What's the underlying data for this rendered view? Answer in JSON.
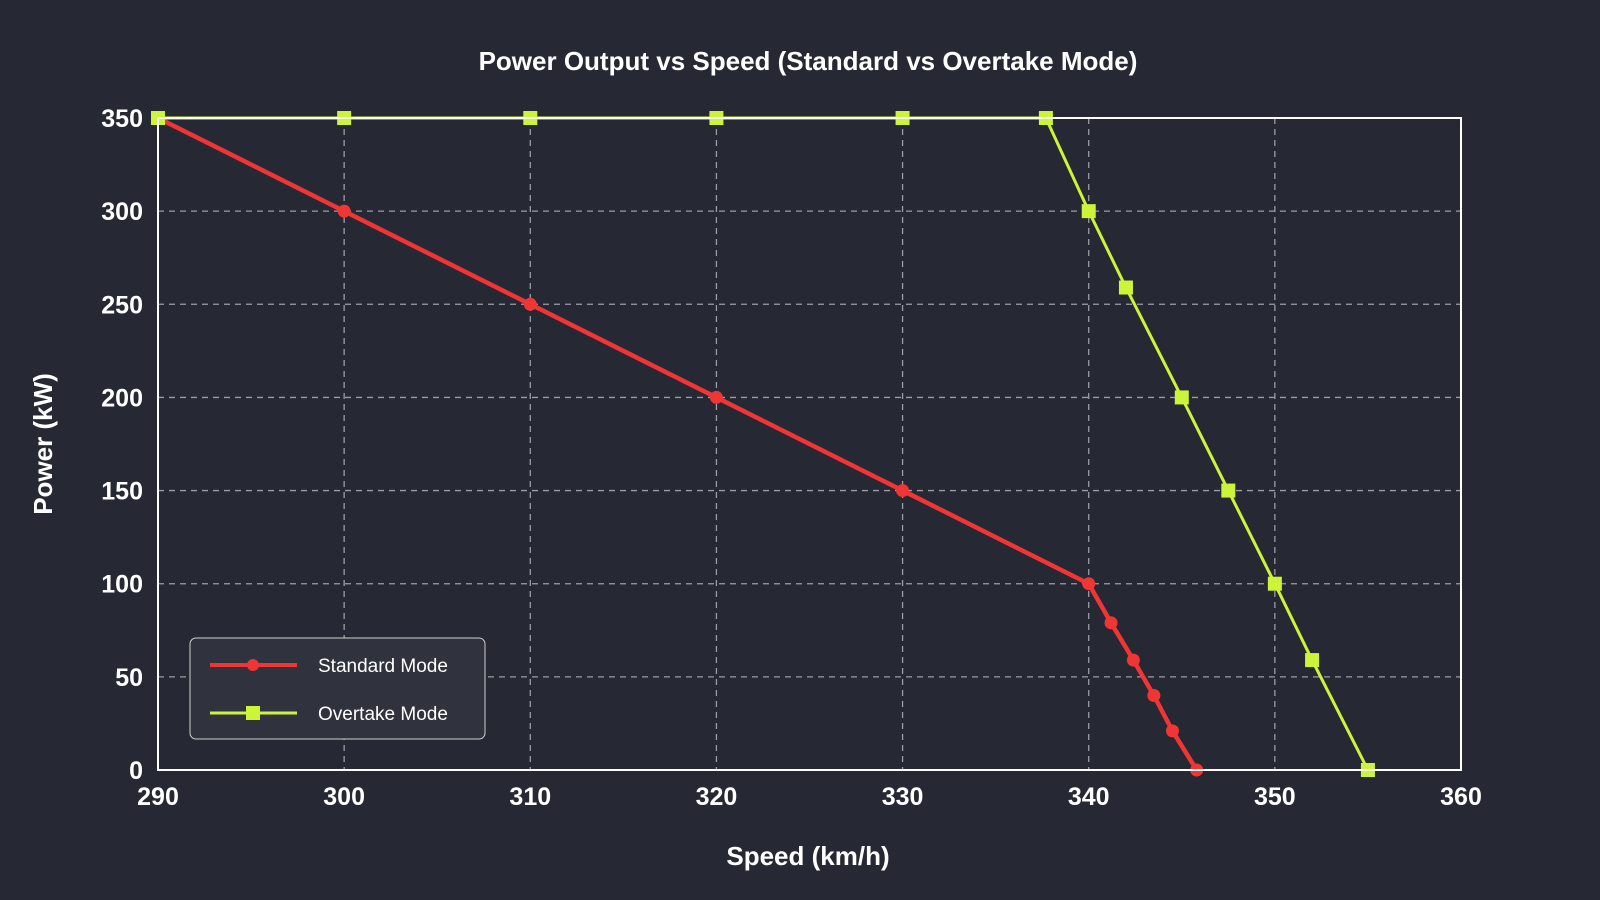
{
  "chart_data": {
    "type": "line",
    "title": "Power Output vs Speed (Standard vs Overtake Mode)",
    "xlabel": "Speed (km/h)",
    "ylabel": "Power (kW)",
    "xlim": [
      290,
      360
    ],
    "ylim": [
      0,
      350
    ],
    "xticks": [
      290,
      300,
      310,
      320,
      330,
      340,
      350,
      360
    ],
    "yticks": [
      0,
      50,
      100,
      150,
      200,
      250,
      300,
      350
    ],
    "grid": true,
    "legend_position": "bottom-left",
    "series": [
      {
        "name": "Standard Mode",
        "color": "#f03535",
        "marker": "circle",
        "x": [
          290,
          300,
          310,
          320,
          330,
          340,
          341.2,
          342.4,
          343.5,
          344.5,
          345.8
        ],
        "y": [
          350,
          300,
          250,
          200,
          150,
          100,
          79,
          59,
          40,
          21,
          0
        ]
      },
      {
        "name": "Overtake Mode",
        "color": "#ccf53a",
        "marker": "square",
        "x": [
          290,
          300,
          310,
          320,
          330,
          337.7,
          340,
          342,
          345,
          347.5,
          350,
          352,
          355
        ],
        "y": [
          350,
          350,
          350,
          350,
          350,
          350,
          300,
          259,
          200,
          150,
          100,
          59,
          0
        ]
      }
    ]
  }
}
